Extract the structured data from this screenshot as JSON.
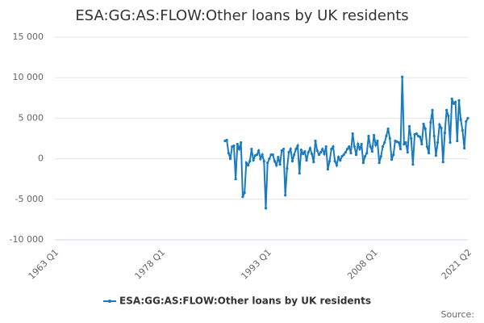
{
  "chart_data": {
    "type": "line",
    "title": "ESA:GG:AS:FLOW:Other loans by UK residents",
    "source": "Source:",
    "categories": [
      "1963 Q1",
      null,
      null,
      null,
      null,
      null,
      null,
      null,
      null,
      null,
      null,
      null,
      null,
      null,
      null,
      null,
      null,
      null,
      null,
      null,
      null,
      null,
      null,
      null,
      null,
      null,
      null,
      null,
      null,
      null,
      null,
      null,
      null,
      null,
      null,
      null,
      null,
      null,
      null,
      null,
      null,
      null,
      null,
      null,
      null,
      null,
      null,
      null,
      null,
      null,
      null,
      null,
      null,
      null,
      null,
      null,
      null,
      null,
      null,
      null,
      "1978 Q1",
      null,
      null,
      null,
      null,
      null,
      null,
      null,
      null,
      null,
      null,
      null,
      null,
      null,
      null,
      null,
      null,
      null,
      null,
      null,
      null,
      null,
      null,
      null,
      null,
      null,
      null,
      null,
      null,
      null,
      null,
      null,
      null,
      null,
      null,
      null,
      null,
      null,
      null,
      null,
      null,
      null,
      null,
      null,
      null,
      null,
      null,
      null,
      null,
      null,
      null,
      null,
      null,
      null,
      null,
      null,
      null,
      null,
      null,
      null,
      "1993 Q1",
      null,
      null,
      null,
      null,
      null,
      null,
      null,
      null,
      null,
      null,
      null,
      null,
      null,
      null,
      null,
      null,
      null,
      null,
      null,
      null,
      null,
      null,
      null,
      null,
      null,
      null,
      null,
      null,
      null,
      null,
      null,
      null,
      null,
      null,
      null,
      null,
      null,
      null,
      null,
      null,
      null,
      null,
      null,
      null,
      null,
      null,
      null,
      null,
      null,
      null,
      null,
      null,
      null,
      null,
      null,
      null,
      null,
      null,
      null,
      "2008 Q1",
      null,
      null,
      null,
      null,
      null,
      null,
      null,
      null,
      null,
      null,
      null,
      null,
      null,
      null,
      null,
      null,
      null,
      null,
      null,
      null,
      null,
      null,
      null,
      null,
      null,
      null,
      null,
      null,
      null,
      null,
      null,
      null,
      null,
      null,
      null,
      null,
      null,
      null,
      null,
      null,
      null,
      null,
      null,
      null,
      null,
      null,
      null,
      null,
      null,
      null,
      null,
      null,
      "2021 Q2"
    ],
    "series": [
      {
        "name": "ESA:GG:AS:FLOW:Other loans by UK residents",
        "color": "#1a7bbf",
        "values": [
          null,
          null,
          null,
          null,
          null,
          null,
          null,
          null,
          null,
          null,
          null,
          null,
          null,
          null,
          null,
          null,
          null,
          null,
          null,
          null,
          null,
          null,
          null,
          null,
          null,
          null,
          null,
          null,
          null,
          null,
          null,
          null,
          null,
          null,
          null,
          null,
          null,
          null,
          null,
          null,
          null,
          null,
          null,
          null,
          null,
          null,
          null,
          null,
          null,
          null,
          null,
          null,
          null,
          null,
          null,
          null,
          null,
          null,
          null,
          null,
          null,
          null,
          null,
          null,
          null,
          null,
          null,
          null,
          null,
          null,
          null,
          null,
          null,
          null,
          null,
          null,
          null,
          null,
          null,
          null,
          null,
          null,
          null,
          null,
          null,
          null,
          null,
          null,
          null,
          null,
          null,
          null,
          null,
          null,
          null,
          null,
          2200,
          2300,
          700,
          0,
          1500,
          1600,
          -2500,
          1800,
          1200,
          2000,
          -4700,
          -4200,
          -500,
          -800,
          -300,
          1200,
          -200,
          400,
          500,
          1000,
          0,
          500,
          -300,
          -6100,
          -500,
          0,
          500,
          500,
          -300,
          -800,
          200,
          -700,
          1000,
          1200,
          -4500,
          -1200,
          800,
          1200,
          -300,
          500,
          1200,
          1600,
          -1800,
          1100,
          600,
          900,
          -200,
          800,
          1300,
          600,
          -400,
          2200,
          1000,
          500,
          800,
          1200,
          600,
          1500,
          -1300,
          -300,
          1200,
          1500,
          -300,
          -800,
          200,
          -200,
          300,
          500,
          800,
          1200,
          1500,
          700,
          3100,
          1500,
          500,
          1800,
          1200,
          1800,
          -500,
          300,
          700,
          2800,
          1500,
          900,
          2900,
          1700,
          2200,
          -500,
          300,
          1500,
          2000,
          2800,
          3700,
          2500,
          -100,
          500,
          2200,
          2100,
          2000,
          1200,
          10100,
          1800,
          2000,
          800,
          4000,
          2500,
          -700,
          3000,
          3100,
          2800,
          2700,
          1800,
          4300,
          3700,
          1500,
          700,
          4500,
          6000,
          2800,
          400,
          2000,
          4200,
          3800,
          -400,
          3200,
          6000,
          5300,
          2000,
          7400,
          6800,
          7000,
          2200,
          7200,
          4800,
          3500,
          1300,
          4600,
          5000
        ]
      }
    ],
    "ylim": [
      -10000,
      15000
    ],
    "yticks": [
      {
        "value": -10000,
        "label": "-10 000"
      },
      {
        "value": -5000,
        "label": "-5 000"
      },
      0,
      {
        "value": 5000,
        "label": "5 000"
      },
      {
        "value": 10000,
        "label": "10 000"
      },
      {
        "value": 15000,
        "label": "15 000"
      }
    ],
    "grid": true
  }
}
